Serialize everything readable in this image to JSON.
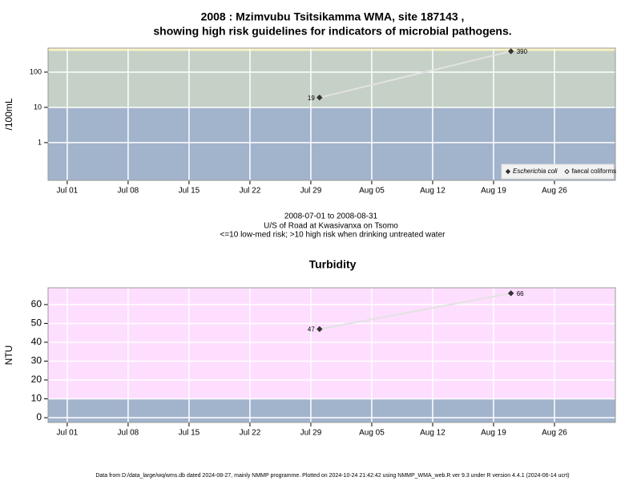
{
  "title": [
    "2008 : Mzimvubu Tsitsikamma WMA, site 187143 ,",
    "showing high risk guidelines for indicators of microbial pathogens."
  ],
  "notes": [
    "2008-07-01 to 2008-08-31",
    "U/S of Road at Kwasivanxa on Tsomo",
    "<=10 low-med risk; >10 high risk when drinking untreated water"
  ],
  "footer": "Data from D:/data_large/wq/wms.db dated 2024-08-27, mainly NMMP programme. Plotted on 2024-10-24 21:42:42 using NMMP_WMA_web.R ver 9.3 under R version 4.4.1 (2024-06-14 ucrt)",
  "chart_data": [
    {
      "type": "line",
      "y_label": "/100mL",
      "log_y": true,
      "x": [
        29,
        51
      ],
      "series": [
        {
          "name": "Escherichia coli",
          "color": "#333333",
          "marker": "filled",
          "values": [
            19,
            390
          ]
        },
        {
          "name": "faecal coliforms",
          "color": "#333333",
          "marker": "open",
          "values": [
            null,
            null
          ]
        }
      ],
      "line_color": "#e2e2e2",
      "bands": [
        {
          "from": 0.085,
          "to": 10,
          "color": "#a2b4cc"
        },
        {
          "from": 10,
          "to": 400,
          "color": "#c5d0c6"
        },
        {
          "from": 400,
          "to": 480,
          "color": "#f8f2c4"
        }
      ],
      "xlim": [
        -2.2,
        63
      ],
      "ylim": [
        0.085,
        480
      ],
      "yticks": [
        1,
        10,
        100
      ],
      "xticks": [
        {
          "value": 0,
          "label": "Jul 01"
        },
        {
          "value": 7,
          "label": "Jul 08"
        },
        {
          "value": 14,
          "label": "Jul 15"
        },
        {
          "value": 21,
          "label": "Jul 22"
        },
        {
          "value": 28,
          "label": "Jul 29"
        },
        {
          "value": 35,
          "label": "Aug 05"
        },
        {
          "value": 42,
          "label": "Aug 12"
        },
        {
          "value": 49,
          "label": "Aug 19"
        },
        {
          "value": 56,
          "label": "Aug 26"
        }
      ],
      "grid": true,
      "legend": "bottom-right"
    },
    {
      "type": "line",
      "title": "Turbidity",
      "y_label": "NTU",
      "log_y": false,
      "x": [
        29,
        51
      ],
      "series": [
        {
          "name": "Turbidity",
          "color": "#333333",
          "marker": "filled",
          "values": [
            47,
            66
          ]
        }
      ],
      "line_color": "#e2e2e2",
      "bands": [
        {
          "from": -2.55,
          "to": 10,
          "color": "#a2b4cc"
        },
        {
          "from": 10,
          "to": 68.9,
          "color": "#fedefe"
        }
      ],
      "xlim": [
        -2.2,
        63
      ],
      "ylim": [
        -2.55,
        68.9
      ],
      "yticks": [
        0,
        10,
        20,
        30,
        40,
        50,
        60
      ],
      "xticks": [
        {
          "value": 0,
          "label": "Jul 01"
        },
        {
          "value": 7,
          "label": "Jul 08"
        },
        {
          "value": 14,
          "label": "Jul 15"
        },
        {
          "value": 21,
          "label": "Jul 22"
        },
        {
          "value": 28,
          "label": "Jul 29"
        },
        {
          "value": 35,
          "label": "Aug 05"
        },
        {
          "value": 42,
          "label": "Aug 12"
        },
        {
          "value": 49,
          "label": "Aug 19"
        },
        {
          "value": 56,
          "label": "Aug 26"
        }
      ],
      "grid": true
    }
  ]
}
